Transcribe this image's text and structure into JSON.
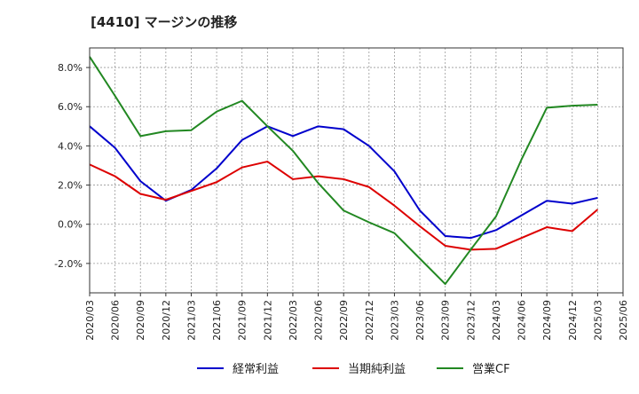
{
  "chart_data": {
    "type": "line",
    "title": "[4410]  マージンの推移",
    "xlabel": "",
    "ylabel": "",
    "x_ticks": [
      "2020/03",
      "2020/06",
      "2020/09",
      "2020/12",
      "2021/03",
      "2021/06",
      "2021/09",
      "2021/12",
      "2022/03",
      "2022/06",
      "2022/09",
      "2022/12",
      "2023/03",
      "2023/06",
      "2023/09",
      "2023/12",
      "2024/03",
      "2024/06",
      "2024/09",
      "2024/12",
      "2025/03",
      "2025/06"
    ],
    "y_ticks": [
      8.0,
      6.0,
      4.0,
      2.0,
      0.0,
      -2.0
    ],
    "y_tick_labels": [
      "8.0%",
      "6.0%",
      "4.0%",
      "2.0%",
      "0.0%",
      "-2.0%"
    ],
    "ylim": [
      -3.5,
      9.0
    ],
    "grid": true,
    "legend_position": "bottom",
    "series": [
      {
        "name": "経常利益",
        "color": "#0000cc",
        "x": [
          "2020/03",
          "2020/06",
          "2020/09",
          "2020/12",
          "2021/03",
          "2021/06",
          "2021/09",
          "2021/12",
          "2022/03",
          "2022/06",
          "2022/09",
          "2022/12",
          "2023/03",
          "2023/06",
          "2023/09",
          "2023/12",
          "2024/03",
          "2024/06",
          "2024/09",
          "2024/12",
          "2025/03"
        ],
        "values": [
          5.0,
          3.9,
          2.2,
          1.2,
          1.75,
          2.85,
          4.3,
          5.0,
          4.5,
          5.0,
          4.85,
          4.0,
          2.7,
          0.7,
          -0.6,
          -0.7,
          -0.3,
          0.45,
          1.2,
          1.05,
          1.35
        ]
      },
      {
        "name": "当期純利益",
        "color": "#dd0000",
        "x": [
          "2020/03",
          "2020/06",
          "2020/09",
          "2020/12",
          "2021/03",
          "2021/06",
          "2021/09",
          "2021/12",
          "2022/03",
          "2022/06",
          "2022/09",
          "2022/12",
          "2023/03",
          "2023/06",
          "2023/09",
          "2023/12",
          "2024/03",
          "2024/06",
          "2024/09",
          "2024/12",
          "2025/03"
        ],
        "values": [
          3.05,
          2.45,
          1.55,
          1.25,
          1.7,
          2.15,
          2.9,
          3.2,
          2.3,
          2.45,
          2.3,
          1.9,
          0.95,
          -0.1,
          -1.1,
          -1.3,
          -1.25,
          -0.7,
          -0.15,
          -0.35,
          0.75
        ]
      },
      {
        "name": "営業CF",
        "color": "#228822",
        "x": [
          "2020/03",
          "2020/06",
          "2020/09",
          "2020/12",
          "2021/03",
          "2021/06",
          "2021/09",
          "2021/12",
          "2022/03",
          "2022/06",
          "2022/09",
          "2022/12",
          "2023/03",
          "2023/06",
          "2023/09",
          "2023/12",
          "2024/03",
          "2024/06",
          "2024/09",
          "2024/12",
          "2025/03"
        ],
        "values": [
          8.55,
          6.55,
          4.5,
          4.75,
          4.8,
          5.75,
          6.3,
          5.0,
          3.75,
          2.1,
          0.7,
          0.1,
          -0.45,
          -1.75,
          -3.05,
          -1.3,
          0.4,
          3.3,
          5.95,
          6.05,
          6.1
        ]
      }
    ]
  }
}
